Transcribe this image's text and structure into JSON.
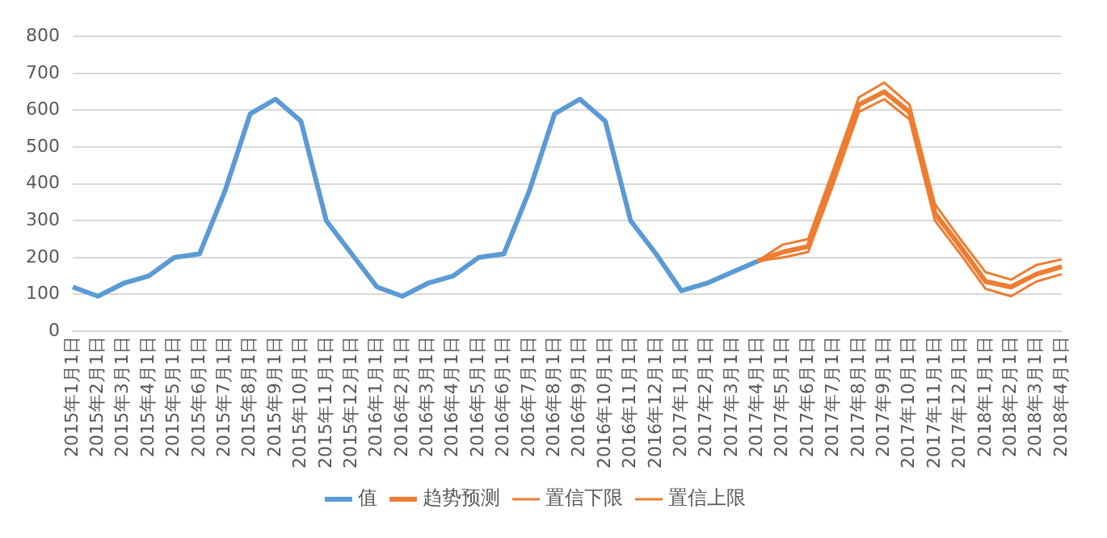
{
  "chart_data": {
    "type": "line",
    "categories": [
      "2015年1月1日",
      "2015年2月1日",
      "2015年3月1日",
      "2015年4月1日",
      "2015年5月1日",
      "2015年6月1日",
      "2015年7月1日",
      "2015年8月1日",
      "2015年9月1日",
      "2015年10月1日",
      "2015年11月1日",
      "2015年12月1日",
      "2016年1月1日",
      "2016年2月1日",
      "2016年3月1日",
      "2016年4月1日",
      "2016年5月1日",
      "2016年6月1日",
      "2016年7月1日",
      "2016年8月1日",
      "2016年9月1日",
      "2016年10月1日",
      "2016年11月1日",
      "2016年12月1日",
      "2017年1月1日",
      "2017年2月1日",
      "2017年3月1日",
      "2017年4月1日",
      "2017年5月1日",
      "2017年6月1日",
      "2017年7月1日",
      "2017年8月1日",
      "2017年9月1日",
      "2017年10月1日",
      "2017年11月1日",
      "2017年12月1日",
      "2018年1月1日",
      "2018年2月1日",
      "2018年3月1日",
      "2018年4月1日"
    ],
    "series": [
      {
        "name": "值",
        "color": "#5b9bd5",
        "values": [
          120,
          95,
          130,
          150,
          200,
          210,
          380,
          590,
          630,
          570,
          300,
          210,
          120,
          95,
          130,
          150,
          200,
          210,
          380,
          590,
          630,
          570,
          300,
          210,
          110,
          130,
          160,
          190,
          null,
          null,
          null,
          null,
          null,
          null,
          null,
          null,
          null,
          null,
          null,
          null
        ]
      },
      {
        "name": "趋势预测",
        "color": "#ed7d31",
        "values": [
          null,
          null,
          null,
          null,
          null,
          null,
          null,
          null,
          null,
          null,
          null,
          null,
          null,
          null,
          null,
          null,
          null,
          null,
          null,
          null,
          null,
          null,
          null,
          null,
          null,
          null,
          null,
          190,
          215,
          230,
          420,
          615,
          650,
          595,
          320,
          230,
          135,
          120,
          155,
          175
        ]
      },
      {
        "name": "置信下限",
        "color": "#ed7d31",
        "values": [
          null,
          null,
          null,
          null,
          null,
          null,
          null,
          null,
          null,
          null,
          null,
          null,
          null,
          null,
          null,
          null,
          null,
          null,
          null,
          null,
          null,
          null,
          null,
          null,
          null,
          null,
          null,
          190,
          200,
          215,
          400,
          595,
          630,
          575,
          300,
          210,
          115,
          95,
          135,
          155
        ]
      },
      {
        "name": "置信上限",
        "color": "#ed7d31",
        "values": [
          null,
          null,
          null,
          null,
          null,
          null,
          null,
          null,
          null,
          null,
          null,
          null,
          null,
          null,
          null,
          null,
          null,
          null,
          null,
          null,
          null,
          null,
          null,
          null,
          null,
          null,
          null,
          190,
          235,
          250,
          440,
          635,
          675,
          615,
          345,
          250,
          160,
          140,
          180,
          195
        ]
      }
    ],
    "ylim": [
      0,
      800
    ],
    "yticks": [
      0,
      100,
      200,
      300,
      400,
      500,
      600,
      700,
      800
    ],
    "grid": "y",
    "legend": "bottom",
    "marker": "none",
    "line_style": "solid"
  }
}
